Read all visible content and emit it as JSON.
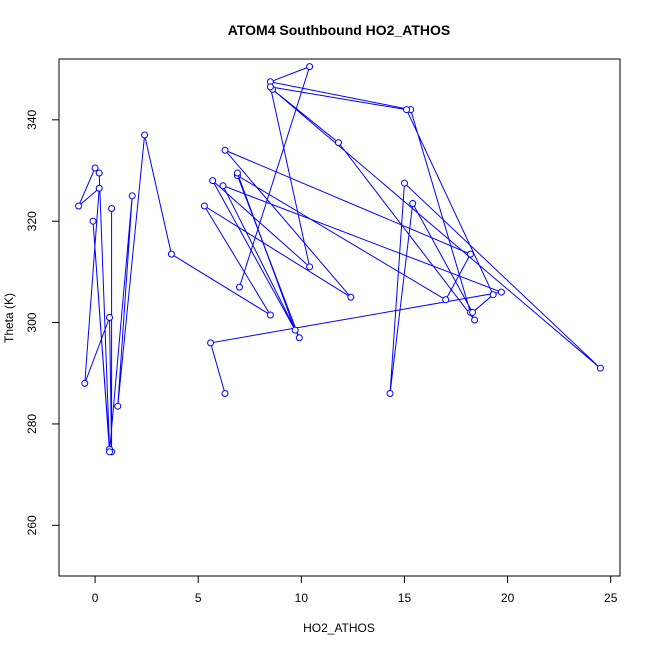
{
  "chart_data": {
    "type": "line",
    "title": "ATOM4 Southbound HO2_ATHOS",
    "xlabel": "HO2_ATHOS",
    "ylabel": "Theta (K)",
    "xlim": [
      -1.75,
      25.45
    ],
    "ylim": [
      250,
      352
    ],
    "xticks": [
      0,
      5,
      10,
      15,
      20,
      25
    ],
    "yticks": [
      260,
      280,
      300,
      320,
      340
    ],
    "grid": false,
    "legend": "none",
    "series_color": "#0000ff",
    "series": [
      {
        "marker": "open-circle",
        "line": true,
        "x": [
          0.8,
          0.8,
          0.7,
          -0.5,
          0.2,
          -0.8,
          0.0,
          0.2,
          0.7,
          -0.1,
          0.7,
          1.8,
          1.1,
          2.4,
          3.7,
          8.5,
          5.3,
          12.4,
          6.3,
          18.2,
          17.0,
          6.9,
          9.9,
          6.2,
          19.7,
          5.6,
          6.3
        ],
        "y": [
          322.5,
          274.5,
          301.0,
          288.0,
          326.5,
          323.0,
          330.5,
          329.5,
          275.0,
          320.0,
          274.5,
          325.0,
          283.5,
          337.0,
          313.5,
          301.5,
          323.0,
          305.0,
          334.0,
          313.5,
          304.5,
          329.0,
          297.0,
          327.0,
          306.0,
          296.0,
          286.0
        ]
      },
      {
        "marker": "open-circle",
        "line": true,
        "x": [
          7.0,
          10.4,
          8.5,
          15.3,
          18.2,
          18.4,
          11.8,
          8.6,
          24.5,
          15.0,
          14.3,
          15.4,
          18.3,
          19.3,
          15.1,
          8.5,
          10.4,
          5.7,
          9.7,
          6.9
        ],
        "y": [
          307.0,
          350.5,
          347.5,
          342.0,
          302.0,
          300.5,
          335.5,
          346.0,
          291.0,
          327.5,
          286.0,
          323.5,
          302.0,
          305.5,
          342.0,
          346.5,
          311.0,
          328.0,
          298.5,
          329.5
        ]
      }
    ]
  }
}
